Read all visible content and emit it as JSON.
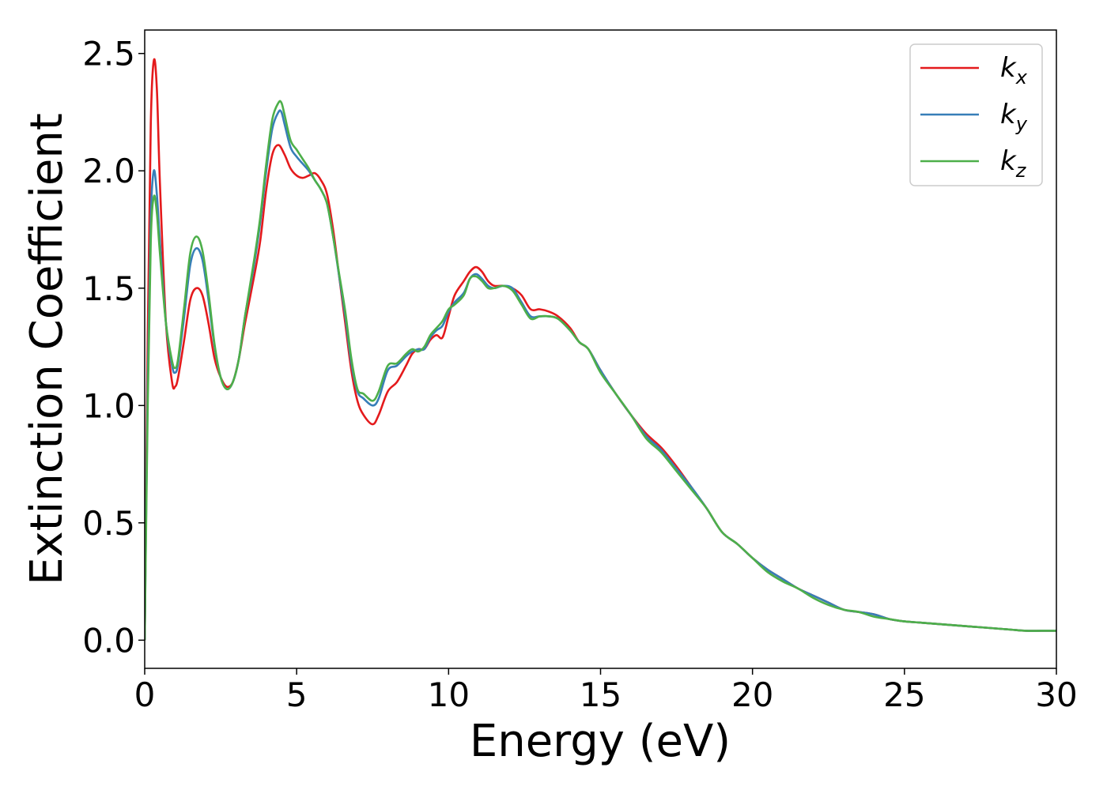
{
  "chart_data": {
    "type": "line",
    "xlabel": "Energy (eV)",
    "ylabel": "Extinction Coefficient",
    "xlim": [
      0,
      30
    ],
    "ylim": [
      -0.12,
      2.6
    ],
    "xticks": [
      0,
      5,
      10,
      15,
      20,
      25,
      30
    ],
    "xtick_labels": [
      "0",
      "5",
      "10",
      "15",
      "20",
      "25",
      "30"
    ],
    "yticks": [
      0.0,
      0.5,
      1.0,
      1.5,
      2.0,
      2.5
    ],
    "ytick_labels": [
      "0.0",
      "0.5",
      "1.0",
      "1.5",
      "2.0",
      "2.5"
    ],
    "grid": false,
    "legend_position": "top-right",
    "series": [
      {
        "name": "k_x",
        "label_main": "k",
        "label_sub": "x",
        "color": "#e41a1c",
        "points": [
          [
            0,
            0.0
          ],
          [
            0.1,
            1.3
          ],
          [
            0.2,
            2.2
          ],
          [
            0.3,
            2.47
          ],
          [
            0.4,
            2.35
          ],
          [
            0.5,
            1.95
          ],
          [
            0.7,
            1.35
          ],
          [
            0.9,
            1.1
          ],
          [
            1.0,
            1.08
          ],
          [
            1.1,
            1.12
          ],
          [
            1.3,
            1.28
          ],
          [
            1.5,
            1.45
          ],
          [
            1.7,
            1.5
          ],
          [
            1.9,
            1.47
          ],
          [
            2.1,
            1.35
          ],
          [
            2.3,
            1.2
          ],
          [
            2.5,
            1.12
          ],
          [
            2.7,
            1.08
          ],
          [
            2.9,
            1.1
          ],
          [
            3.1,
            1.2
          ],
          [
            3.3,
            1.35
          ],
          [
            3.6,
            1.55
          ],
          [
            3.8,
            1.7
          ],
          [
            4.0,
            1.92
          ],
          [
            4.2,
            2.07
          ],
          [
            4.4,
            2.11
          ],
          [
            4.6,
            2.07
          ],
          [
            4.8,
            2.01
          ],
          [
            5.0,
            1.98
          ],
          [
            5.2,
            1.97
          ],
          [
            5.4,
            1.98
          ],
          [
            5.6,
            1.99
          ],
          [
            5.8,
            1.96
          ],
          [
            6.0,
            1.9
          ],
          [
            6.2,
            1.75
          ],
          [
            6.4,
            1.55
          ],
          [
            6.6,
            1.35
          ],
          [
            6.8,
            1.15
          ],
          [
            7.0,
            1.02
          ],
          [
            7.2,
            0.96
          ],
          [
            7.5,
            0.92
          ],
          [
            7.7,
            0.96
          ],
          [
            8.0,
            1.06
          ],
          [
            8.3,
            1.1
          ],
          [
            8.6,
            1.17
          ],
          [
            8.8,
            1.22
          ],
          [
            9.0,
            1.24
          ],
          [
            9.2,
            1.24
          ],
          [
            9.4,
            1.28
          ],
          [
            9.6,
            1.3
          ],
          [
            9.8,
            1.29
          ],
          [
            10.0,
            1.38
          ],
          [
            10.2,
            1.47
          ],
          [
            10.5,
            1.53
          ],
          [
            10.7,
            1.57
          ],
          [
            10.9,
            1.59
          ],
          [
            11.1,
            1.57
          ],
          [
            11.3,
            1.53
          ],
          [
            11.5,
            1.51
          ],
          [
            11.8,
            1.51
          ],
          [
            12.1,
            1.5
          ],
          [
            12.4,
            1.47
          ],
          [
            12.7,
            1.41
          ],
          [
            13.0,
            1.41
          ],
          [
            13.3,
            1.4
          ],
          [
            13.6,
            1.38
          ],
          [
            14.0,
            1.33
          ],
          [
            14.3,
            1.27
          ],
          [
            14.6,
            1.24
          ],
          [
            15.0,
            1.15
          ],
          [
            15.5,
            1.05
          ],
          [
            16.0,
            0.96
          ],
          [
            16.5,
            0.88
          ],
          [
            17.0,
            0.82
          ],
          [
            17.5,
            0.74
          ],
          [
            18.0,
            0.65
          ],
          [
            18.5,
            0.56
          ],
          [
            19.0,
            0.46
          ],
          [
            19.5,
            0.41
          ],
          [
            20.0,
            0.35
          ],
          [
            20.5,
            0.3
          ],
          [
            21.0,
            0.26
          ],
          [
            21.5,
            0.22
          ],
          [
            22.0,
            0.19
          ],
          [
            22.5,
            0.16
          ],
          [
            23.0,
            0.13
          ],
          [
            23.5,
            0.12
          ],
          [
            24.0,
            0.11
          ],
          [
            24.5,
            0.09
          ],
          [
            25.0,
            0.08
          ],
          [
            25.5,
            0.075
          ],
          [
            26.0,
            0.07
          ],
          [
            26.5,
            0.065
          ],
          [
            27.0,
            0.06
          ],
          [
            27.5,
            0.055
          ],
          [
            28.0,
            0.05
          ],
          [
            28.5,
            0.045
          ],
          [
            29.0,
            0.04
          ],
          [
            29.5,
            0.04
          ],
          [
            30.0,
            0.04
          ]
        ]
      },
      {
        "name": "k_y",
        "label_main": "k",
        "label_sub": "y",
        "color": "#377eb8",
        "points": [
          [
            0,
            0.0
          ],
          [
            0.1,
            1.1
          ],
          [
            0.2,
            1.8
          ],
          [
            0.3,
            2.0
          ],
          [
            0.4,
            1.9
          ],
          [
            0.5,
            1.7
          ],
          [
            0.7,
            1.35
          ],
          [
            0.9,
            1.17
          ],
          [
            1.0,
            1.14
          ],
          [
            1.1,
            1.18
          ],
          [
            1.3,
            1.38
          ],
          [
            1.5,
            1.6
          ],
          [
            1.7,
            1.67
          ],
          [
            1.9,
            1.62
          ],
          [
            2.1,
            1.45
          ],
          [
            2.3,
            1.25
          ],
          [
            2.5,
            1.12
          ],
          [
            2.7,
            1.07
          ],
          [
            2.9,
            1.1
          ],
          [
            3.1,
            1.2
          ],
          [
            3.3,
            1.38
          ],
          [
            3.6,
            1.6
          ],
          [
            3.8,
            1.78
          ],
          [
            4.0,
            2.0
          ],
          [
            4.2,
            2.18
          ],
          [
            4.4,
            2.25
          ],
          [
            4.5,
            2.25
          ],
          [
            4.6,
            2.2
          ],
          [
            4.8,
            2.1
          ],
          [
            5.0,
            2.06
          ],
          [
            5.2,
            2.03
          ],
          [
            5.4,
            2.0
          ],
          [
            5.6,
            1.96
          ],
          [
            5.8,
            1.92
          ],
          [
            6.0,
            1.86
          ],
          [
            6.2,
            1.72
          ],
          [
            6.4,
            1.55
          ],
          [
            6.6,
            1.38
          ],
          [
            6.8,
            1.18
          ],
          [
            7.0,
            1.06
          ],
          [
            7.2,
            1.03
          ],
          [
            7.5,
            1.0
          ],
          [
            7.7,
            1.03
          ],
          [
            8.0,
            1.15
          ],
          [
            8.3,
            1.17
          ],
          [
            8.6,
            1.21
          ],
          [
            8.8,
            1.23
          ],
          [
            9.0,
            1.24
          ],
          [
            9.2,
            1.24
          ],
          [
            9.4,
            1.29
          ],
          [
            9.6,
            1.32
          ],
          [
            9.8,
            1.34
          ],
          [
            10.0,
            1.4
          ],
          [
            10.2,
            1.44
          ],
          [
            10.5,
            1.48
          ],
          [
            10.7,
            1.54
          ],
          [
            10.9,
            1.56
          ],
          [
            11.1,
            1.54
          ],
          [
            11.3,
            1.51
          ],
          [
            11.5,
            1.5
          ],
          [
            11.8,
            1.51
          ],
          [
            12.1,
            1.5
          ],
          [
            12.4,
            1.44
          ],
          [
            12.7,
            1.38
          ],
          [
            13.0,
            1.38
          ],
          [
            13.3,
            1.38
          ],
          [
            13.6,
            1.37
          ],
          [
            14.0,
            1.32
          ],
          [
            14.3,
            1.27
          ],
          [
            14.6,
            1.24
          ],
          [
            15.0,
            1.15
          ],
          [
            15.5,
            1.05
          ],
          [
            16.0,
            0.96
          ],
          [
            16.5,
            0.87
          ],
          [
            17.0,
            0.81
          ],
          [
            17.5,
            0.73
          ],
          [
            18.0,
            0.65
          ],
          [
            18.5,
            0.56
          ],
          [
            19.0,
            0.46
          ],
          [
            19.5,
            0.41
          ],
          [
            20.0,
            0.35
          ],
          [
            20.5,
            0.3
          ],
          [
            21.0,
            0.26
          ],
          [
            21.5,
            0.22
          ],
          [
            22.0,
            0.19
          ],
          [
            22.5,
            0.16
          ],
          [
            23.0,
            0.13
          ],
          [
            23.5,
            0.12
          ],
          [
            24.0,
            0.11
          ],
          [
            24.5,
            0.09
          ],
          [
            25.0,
            0.08
          ],
          [
            25.5,
            0.075
          ],
          [
            26.0,
            0.07
          ],
          [
            26.5,
            0.065
          ],
          [
            27.0,
            0.06
          ],
          [
            27.5,
            0.055
          ],
          [
            28.0,
            0.05
          ],
          [
            28.5,
            0.045
          ],
          [
            29.0,
            0.04
          ],
          [
            29.5,
            0.04
          ],
          [
            30.0,
            0.04
          ]
        ]
      },
      {
        "name": "k_z",
        "label_main": "k",
        "label_sub": "z",
        "color": "#4daf4a",
        "points": [
          [
            0,
            0.0
          ],
          [
            0.1,
            1.0
          ],
          [
            0.2,
            1.7
          ],
          [
            0.3,
            1.89
          ],
          [
            0.4,
            1.82
          ],
          [
            0.5,
            1.65
          ],
          [
            0.7,
            1.35
          ],
          [
            0.9,
            1.19
          ],
          [
            1.0,
            1.16
          ],
          [
            1.1,
            1.2
          ],
          [
            1.3,
            1.42
          ],
          [
            1.5,
            1.65
          ],
          [
            1.7,
            1.72
          ],
          [
            1.9,
            1.66
          ],
          [
            2.1,
            1.48
          ],
          [
            2.3,
            1.26
          ],
          [
            2.5,
            1.12
          ],
          [
            2.7,
            1.07
          ],
          [
            2.9,
            1.1
          ],
          [
            3.1,
            1.2
          ],
          [
            3.3,
            1.38
          ],
          [
            3.6,
            1.62
          ],
          [
            3.8,
            1.8
          ],
          [
            4.0,
            2.03
          ],
          [
            4.2,
            2.22
          ],
          [
            4.4,
            2.29
          ],
          [
            4.5,
            2.29
          ],
          [
            4.6,
            2.24
          ],
          [
            4.8,
            2.13
          ],
          [
            5.0,
            2.09
          ],
          [
            5.2,
            2.05
          ],
          [
            5.4,
            2.01
          ],
          [
            5.6,
            1.96
          ],
          [
            5.8,
            1.92
          ],
          [
            6.0,
            1.86
          ],
          [
            6.2,
            1.72
          ],
          [
            6.4,
            1.56
          ],
          [
            6.6,
            1.4
          ],
          [
            6.8,
            1.2
          ],
          [
            7.0,
            1.07
          ],
          [
            7.2,
            1.05
          ],
          [
            7.5,
            1.02
          ],
          [
            7.7,
            1.06
          ],
          [
            8.0,
            1.17
          ],
          [
            8.3,
            1.18
          ],
          [
            8.6,
            1.22
          ],
          [
            8.8,
            1.24
          ],
          [
            9.0,
            1.23
          ],
          [
            9.2,
            1.25
          ],
          [
            9.4,
            1.3
          ],
          [
            9.6,
            1.33
          ],
          [
            9.8,
            1.36
          ],
          [
            10.0,
            1.41
          ],
          [
            10.2,
            1.43
          ],
          [
            10.5,
            1.47
          ],
          [
            10.7,
            1.54
          ],
          [
            10.9,
            1.55
          ],
          [
            11.1,
            1.53
          ],
          [
            11.3,
            1.5
          ],
          [
            11.5,
            1.5
          ],
          [
            11.8,
            1.51
          ],
          [
            12.1,
            1.49
          ],
          [
            12.4,
            1.43
          ],
          [
            12.7,
            1.37
          ],
          [
            13.0,
            1.38
          ],
          [
            13.3,
            1.38
          ],
          [
            13.6,
            1.37
          ],
          [
            14.0,
            1.32
          ],
          [
            14.3,
            1.27
          ],
          [
            14.6,
            1.24
          ],
          [
            15.0,
            1.14
          ],
          [
            15.5,
            1.05
          ],
          [
            16.0,
            0.96
          ],
          [
            16.5,
            0.86
          ],
          [
            17.0,
            0.8
          ],
          [
            17.5,
            0.72
          ],
          [
            18.0,
            0.64
          ],
          [
            18.5,
            0.56
          ],
          [
            19.0,
            0.46
          ],
          [
            19.5,
            0.41
          ],
          [
            20.0,
            0.35
          ],
          [
            20.5,
            0.29
          ],
          [
            21.0,
            0.25
          ],
          [
            21.5,
            0.22
          ],
          [
            22.0,
            0.18
          ],
          [
            22.5,
            0.15
          ],
          [
            23.0,
            0.13
          ],
          [
            23.5,
            0.12
          ],
          [
            24.0,
            0.1
          ],
          [
            24.5,
            0.09
          ],
          [
            25.0,
            0.08
          ],
          [
            25.5,
            0.075
          ],
          [
            26.0,
            0.07
          ],
          [
            26.5,
            0.065
          ],
          [
            27.0,
            0.06
          ],
          [
            27.5,
            0.055
          ],
          [
            28.0,
            0.05
          ],
          [
            28.5,
            0.045
          ],
          [
            29.0,
            0.04
          ],
          [
            29.5,
            0.04
          ],
          [
            30.0,
            0.04
          ]
        ]
      }
    ]
  }
}
